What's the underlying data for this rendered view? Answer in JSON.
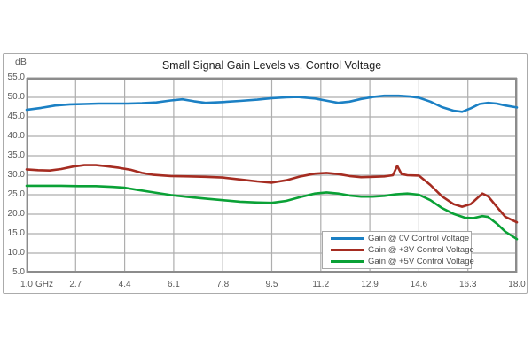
{
  "chart": {
    "unit_label": "dB"
  },
  "chart_data": {
    "type": "line",
    "title": "Small Signal Gain Levels vs. Control Voltage",
    "xlabel": "GHz",
    "ylabel": "dB",
    "xlim": [
      1.0,
      18.0
    ],
    "ylim": [
      5.0,
      55.0
    ],
    "grid": true,
    "legend_position": "inside-bottom-right",
    "x_ticks": [
      1.0,
      2.7,
      4.4,
      6.1,
      7.8,
      9.5,
      11.2,
      12.9,
      14.6,
      16.3,
      18.0
    ],
    "x_tick_labels": [
      "1.0",
      "2.7",
      "4.4",
      "6.1",
      "7.8",
      "9.5",
      "11.2",
      "12.9",
      "14.6",
      "16.3",
      "18.0"
    ],
    "y_ticks": [
      55,
      50,
      45,
      40,
      35,
      30,
      25,
      20,
      15,
      10,
      5
    ],
    "y_tick_labels": [
      "55.0",
      "50.0",
      "45.0",
      "40.0",
      "35.0",
      "30.0",
      "25.0",
      "20.0",
      "15.0",
      "10.0",
      "5.0"
    ],
    "colors": {
      "frame": "#8c8c8c",
      "grid": "#aeaeae",
      "axis_text": "#595959"
    },
    "series": [
      {
        "name": "Gain @ 0V Control Voltage",
        "color": "#1b80c4",
        "points": [
          [
            1.0,
            46.8
          ],
          [
            1.5,
            47.3
          ],
          [
            2.0,
            47.9
          ],
          [
            2.5,
            48.2
          ],
          [
            3.0,
            48.3
          ],
          [
            3.5,
            48.4
          ],
          [
            4.0,
            48.4
          ],
          [
            4.5,
            48.4
          ],
          [
            5.0,
            48.5
          ],
          [
            5.5,
            48.7
          ],
          [
            6.0,
            49.2
          ],
          [
            6.4,
            49.5
          ],
          [
            6.8,
            49.0
          ],
          [
            7.2,
            48.6
          ],
          [
            7.8,
            48.8
          ],
          [
            8.4,
            49.1
          ],
          [
            9.0,
            49.4
          ],
          [
            9.5,
            49.8
          ],
          [
            10.0,
            50.0
          ],
          [
            10.4,
            50.1
          ],
          [
            11.0,
            49.7
          ],
          [
            11.5,
            49.0
          ],
          [
            11.8,
            48.6
          ],
          [
            12.2,
            48.9
          ],
          [
            12.6,
            49.6
          ],
          [
            13.0,
            50.1
          ],
          [
            13.4,
            50.4
          ],
          [
            13.9,
            50.4
          ],
          [
            14.3,
            50.2
          ],
          [
            14.6,
            49.9
          ],
          [
            15.0,
            48.9
          ],
          [
            15.4,
            47.5
          ],
          [
            15.8,
            46.6
          ],
          [
            16.1,
            46.3
          ],
          [
            16.4,
            47.2
          ],
          [
            16.7,
            48.3
          ],
          [
            17.0,
            48.6
          ],
          [
            17.3,
            48.4
          ],
          [
            17.6,
            47.9
          ],
          [
            18.0,
            47.4
          ]
        ]
      },
      {
        "name": "Gain @ +3V Control Voltage",
        "color": "#a52c21",
        "points": [
          [
            1.0,
            31.5
          ],
          [
            1.4,
            31.3
          ],
          [
            1.8,
            31.2
          ],
          [
            2.2,
            31.6
          ],
          [
            2.6,
            32.2
          ],
          [
            3.0,
            32.6
          ],
          [
            3.4,
            32.6
          ],
          [
            3.8,
            32.3
          ],
          [
            4.2,
            31.9
          ],
          [
            4.6,
            31.4
          ],
          [
            5.0,
            30.6
          ],
          [
            5.4,
            30.1
          ],
          [
            6.0,
            29.8
          ],
          [
            6.6,
            29.7
          ],
          [
            7.2,
            29.6
          ],
          [
            7.8,
            29.4
          ],
          [
            8.4,
            28.9
          ],
          [
            9.0,
            28.4
          ],
          [
            9.5,
            28.1
          ],
          [
            10.0,
            28.7
          ],
          [
            10.5,
            29.7
          ],
          [
            11.0,
            30.4
          ],
          [
            11.4,
            30.6
          ],
          [
            11.8,
            30.3
          ],
          [
            12.2,
            29.8
          ],
          [
            12.6,
            29.5
          ],
          [
            13.0,
            29.6
          ],
          [
            13.4,
            29.7
          ],
          [
            13.7,
            30.0
          ],
          [
            13.85,
            32.4
          ],
          [
            14.0,
            30.3
          ],
          [
            14.2,
            30.0
          ],
          [
            14.6,
            29.9
          ],
          [
            15.0,
            27.5
          ],
          [
            15.4,
            24.6
          ],
          [
            15.8,
            22.6
          ],
          [
            16.1,
            21.9
          ],
          [
            16.4,
            22.6
          ],
          [
            16.8,
            25.3
          ],
          [
            17.0,
            24.6
          ],
          [
            17.3,
            21.9
          ],
          [
            17.6,
            19.3
          ],
          [
            18.0,
            17.9
          ]
        ]
      },
      {
        "name": "Gain @ +5V Control Voltage",
        "color": "#0aa136",
        "points": [
          [
            1.0,
            27.3
          ],
          [
            1.6,
            27.3
          ],
          [
            2.2,
            27.3
          ],
          [
            2.8,
            27.2
          ],
          [
            3.4,
            27.2
          ],
          [
            4.0,
            27.0
          ],
          [
            4.4,
            26.8
          ],
          [
            4.8,
            26.3
          ],
          [
            5.4,
            25.6
          ],
          [
            6.0,
            24.9
          ],
          [
            6.6,
            24.4
          ],
          [
            7.2,
            24.0
          ],
          [
            7.8,
            23.6
          ],
          [
            8.4,
            23.2
          ],
          [
            9.0,
            23.0
          ],
          [
            9.5,
            22.9
          ],
          [
            10.0,
            23.4
          ],
          [
            10.5,
            24.4
          ],
          [
            11.0,
            25.3
          ],
          [
            11.4,
            25.6
          ],
          [
            11.8,
            25.3
          ],
          [
            12.2,
            24.8
          ],
          [
            12.6,
            24.5
          ],
          [
            13.0,
            24.5
          ],
          [
            13.4,
            24.7
          ],
          [
            13.8,
            25.1
          ],
          [
            14.2,
            25.3
          ],
          [
            14.6,
            25.0
          ],
          [
            15.0,
            23.6
          ],
          [
            15.4,
            21.6
          ],
          [
            15.8,
            20.1
          ],
          [
            16.2,
            19.1
          ],
          [
            16.5,
            19.0
          ],
          [
            16.8,
            19.5
          ],
          [
            17.0,
            19.3
          ],
          [
            17.3,
            17.6
          ],
          [
            17.6,
            15.5
          ],
          [
            18.0,
            13.6
          ]
        ]
      }
    ]
  }
}
